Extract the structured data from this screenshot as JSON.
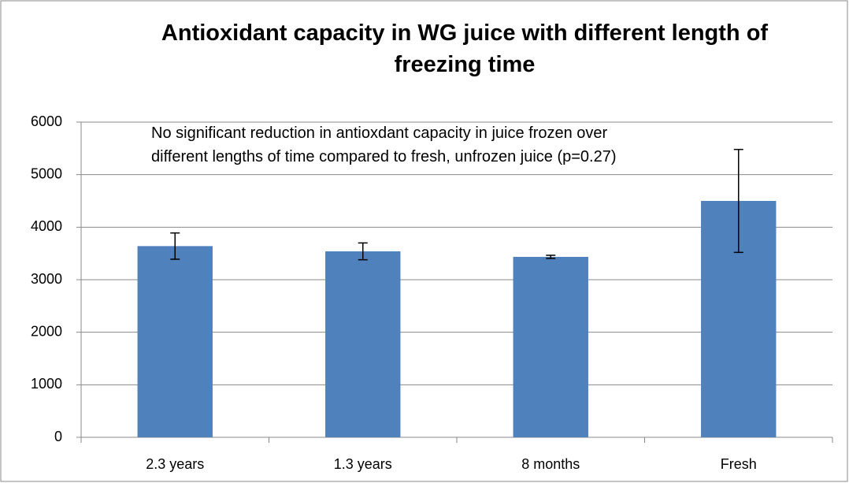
{
  "chart_data": {
    "type": "bar",
    "title": "Antioxidant capacity in WG juice with different length of freezing time",
    "annotation": "No significant reduction  in antioxdant capacity  in juice frozen over different lengths  of time  compared to fresh, unfrozen  juice (p=0.27)",
    "categories": [
      "2.3 years",
      "1.3 years",
      "8 months",
      "Fresh"
    ],
    "values": [
      3640,
      3540,
      3435,
      4500
    ],
    "errors": [
      250,
      160,
      30,
      980
    ],
    "color": "#4f81bd",
    "ylim": [
      0,
      6000
    ],
    "yticks": [
      0,
      1000,
      2000,
      3000,
      4000,
      5000,
      6000
    ],
    "grid": true
  }
}
